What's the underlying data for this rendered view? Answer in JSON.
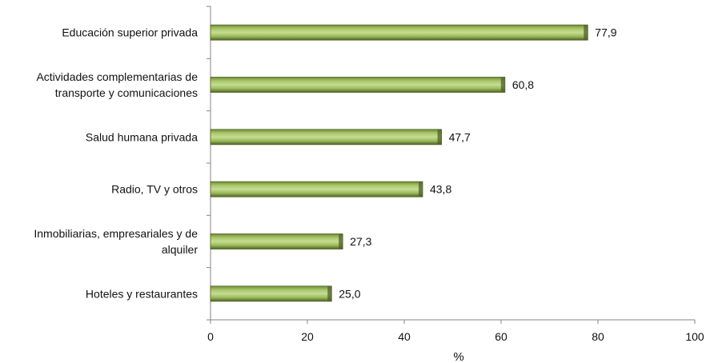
{
  "chart_data": {
    "type": "bar",
    "orientation": "horizontal",
    "categories": [
      "Educación superior privada",
      "Actividades complementarias de transporte y comunicaciones",
      "Salud humana privada",
      "Radio, TV y otros",
      "Inmobiliarias, empresariales y de alquiler",
      "Hoteles y restaurantes"
    ],
    "category_lines": [
      [
        "Educación superior privada"
      ],
      [
        "Actividades complementarias de",
        "transporte y comunicaciones"
      ],
      [
        "Salud humana privada"
      ],
      [
        "Radio, TV y otros"
      ],
      [
        "Inmobiliarias, empresariales y de",
        "alquiler"
      ],
      [
        "Hoteles y restaurantes"
      ]
    ],
    "values": [
      77.9,
      60.8,
      47.7,
      43.8,
      27.3,
      25.0
    ],
    "value_labels": [
      "77,9",
      "60,8",
      "47,7",
      "43,8",
      "27,3",
      "25,0"
    ],
    "xlabel": "%",
    "xlim": [
      0,
      100
    ],
    "xticks": [
      0,
      20,
      40,
      60,
      80,
      100
    ],
    "grid": false,
    "legend": "none",
    "bar_color": "#9bbb59",
    "bar_edge_color": "#4f6228"
  }
}
